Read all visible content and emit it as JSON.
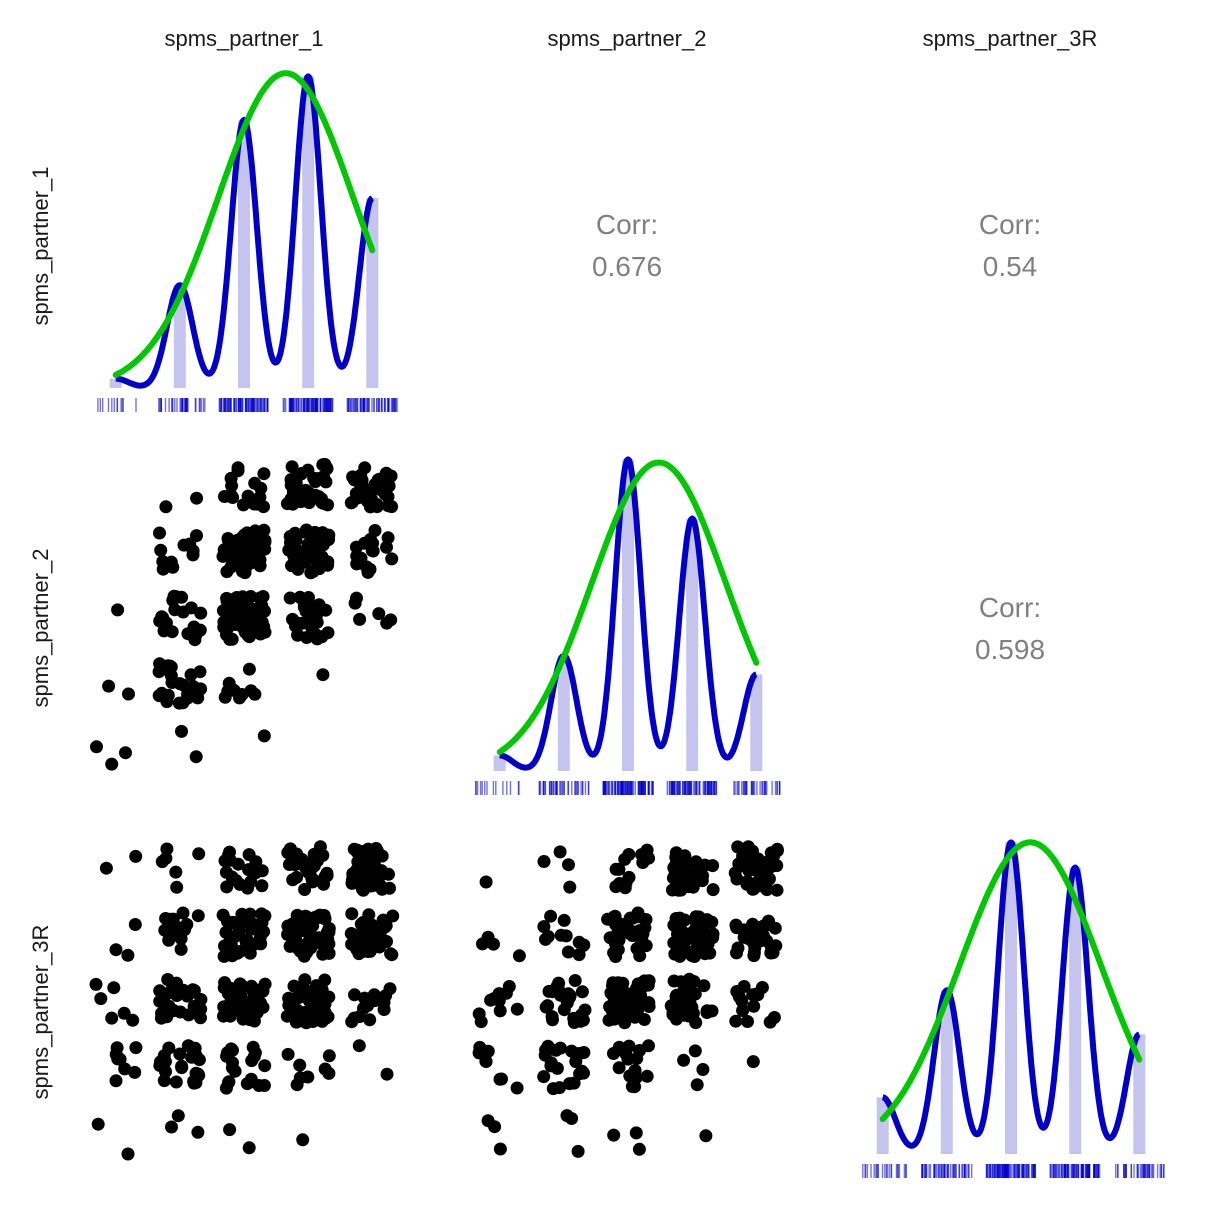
{
  "colors": {
    "histogram_bar": "#c4c4ef",
    "density_curve": "#0000c8",
    "normal_curve": "#00c800",
    "rug": "#0000c8",
    "scatter_point": "#000000",
    "corr_text": "#808080"
  },
  "chart_data": {
    "type": "scatter",
    "layout": "pairs-matrix",
    "variables": [
      "spms_partner_1",
      "spms_partner_2",
      "spms_partner_3R"
    ],
    "corr_label": "Corr:",
    "correlations": [
      {
        "row": 0,
        "col": 1,
        "pair": [
          "spms_partner_1",
          "spms_partner_2"
        ],
        "value": "0.676"
      },
      {
        "row": 0,
        "col": 2,
        "pair": [
          "spms_partner_1",
          "spms_partner_3R"
        ],
        "value": "0.54"
      },
      {
        "row": 1,
        "col": 2,
        "pair": [
          "spms_partner_2",
          "spms_partner_3R"
        ],
        "value": "0.598"
      }
    ],
    "diagonal": [
      {
        "variable": "spms_partner_1",
        "levels": [
          1,
          2,
          3,
          4,
          5
        ],
        "level_weights": [
          0.03,
          0.33,
          0.86,
          1.0,
          0.61
        ],
        "normal": {
          "mean": 3.65,
          "sd": 1.05
        },
        "normal_peak": 0.99
      },
      {
        "variable": "spms_partner_2",
        "levels": [
          1,
          2,
          3,
          4,
          5
        ],
        "level_weights": [
          0.05,
          0.37,
          1.0,
          0.81,
          0.31
        ],
        "normal": {
          "mean": 3.48,
          "sd": 1.05
        },
        "normal_peak": 0.97
      },
      {
        "variable": "spms_partner_3R",
        "levels": [
          1,
          2,
          3,
          4,
          5
        ],
        "level_weights": [
          0.18,
          0.52,
          0.99,
          0.91,
          0.38
        ],
        "normal": {
          "mean": 3.3,
          "sd": 1.1
        },
        "normal_peak": 0.98
      }
    ],
    "scatter_panels": [
      {
        "row": 1,
        "col": 0,
        "x": "spms_partner_1",
        "y": "spms_partner_2"
      },
      {
        "row": 2,
        "col": 0,
        "x": "spms_partner_1",
        "y": "spms_partner_3R"
      },
      {
        "row": 2,
        "col": 1,
        "x": "spms_partner_2",
        "y": "spms_partner_3R"
      }
    ],
    "joint_counts": {
      "p1_vs_p2": [
        [
          3,
          2,
          1,
          0,
          0
        ],
        [
          2,
          24,
          10,
          1,
          0
        ],
        [
          1,
          20,
          62,
          28,
          6
        ],
        [
          0,
          11,
          48,
          54,
          16
        ],
        [
          0,
          2,
          16,
          40,
          45
        ]
      ],
      "p1_vs_p3R": [
        [
          2,
          3,
          2,
          1,
          0
        ],
        [
          8,
          24,
          20,
          8,
          2
        ],
        [
          6,
          30,
          50,
          40,
          16
        ],
        [
          3,
          14,
          40,
          54,
          38
        ],
        [
          2,
          6,
          18,
          34,
          44
        ]
      ],
      "p2_vs_p3R": [
        [
          3,
          3,
          3,
          1,
          0
        ],
        [
          8,
          22,
          16,
          4,
          1
        ],
        [
          10,
          26,
          48,
          34,
          14
        ],
        [
          4,
          12,
          38,
          52,
          30
        ],
        [
          1,
          4,
          14,
          30,
          40
        ]
      ]
    },
    "jitter": 0.33,
    "rng_seed": 20240611
  }
}
